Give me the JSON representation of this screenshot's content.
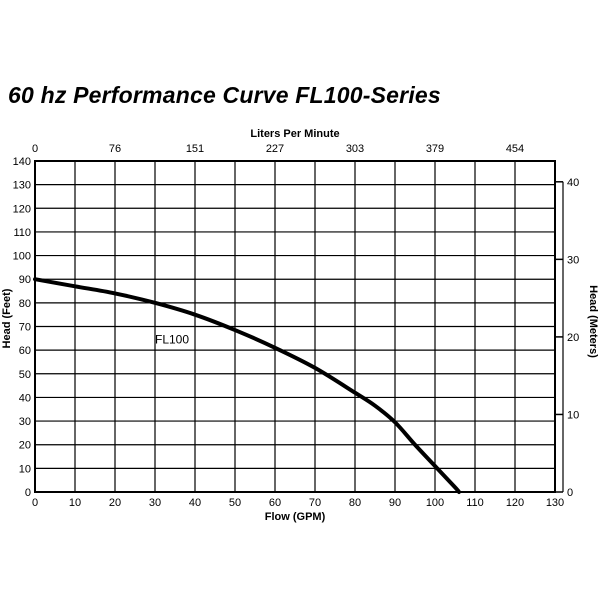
{
  "chart_data": {
    "type": "line",
    "title": "60 hz  Performance Curve FL100-Series",
    "xlabel": "Flow (GPM)",
    "ylabel": "Head (Feet)",
    "top_xlabel": "Liters Per Minute",
    "right_ylabel": "Head (Meters)",
    "xlim": [
      0,
      130
    ],
    "ylim": [
      0,
      140
    ],
    "x_ticks": [
      0,
      10,
      20,
      30,
      40,
      50,
      60,
      70,
      80,
      90,
      100,
      110,
      120,
      130
    ],
    "y_ticks": [
      0,
      10,
      20,
      30,
      40,
      50,
      60,
      70,
      80,
      90,
      100,
      110,
      120,
      130,
      140
    ],
    "top_x_ticks": [
      {
        "label": "0",
        "gpm": 0
      },
      {
        "label": "76",
        "gpm": 20
      },
      {
        "label": "151",
        "gpm": 40
      },
      {
        "label": "227",
        "gpm": 60
      },
      {
        "label": "303",
        "gpm": 80
      },
      {
        "label": "379",
        "gpm": 100
      },
      {
        "label": "454",
        "gpm": 120
      }
    ],
    "right_y_ticks": [
      {
        "label": "0",
        "feet": 0
      },
      {
        "label": "10",
        "feet": 32.8
      },
      {
        "label": "20",
        "feet": 65.6
      },
      {
        "label": "30",
        "feet": 98.4
      },
      {
        "label": "40",
        "feet": 131.2
      }
    ],
    "grid": true,
    "series": [
      {
        "name": "FL100",
        "x": [
          0,
          10,
          20,
          30,
          40,
          50,
          60,
          70,
          80,
          85,
          90,
          95,
          100,
          105,
          106
        ],
        "y": [
          90,
          87,
          84,
          80,
          75,
          68.5,
          61,
          52.5,
          42,
          36.5,
          29.5,
          20,
          11,
          2,
          0
        ]
      }
    ],
    "series_label_position": {
      "x": 30,
      "y": 65
    }
  }
}
